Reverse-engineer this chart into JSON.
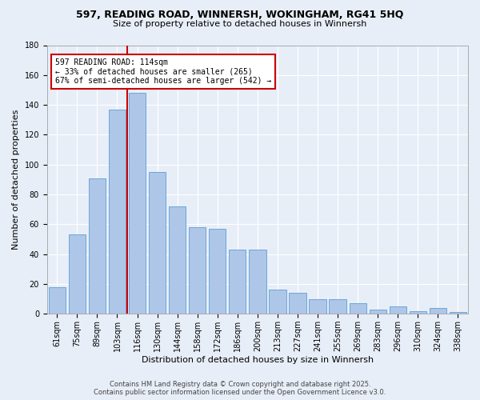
{
  "title1": "597, READING ROAD, WINNERSH, WOKINGHAM, RG41 5HQ",
  "title2": "Size of property relative to detached houses in Winnersh",
  "xlabel": "Distribution of detached houses by size in Winnersh",
  "ylabel": "Number of detached properties",
  "categories": [
    "61sqm",
    "75sqm",
    "89sqm",
    "103sqm",
    "116sqm",
    "130sqm",
    "144sqm",
    "158sqm",
    "172sqm",
    "186sqm",
    "200sqm",
    "213sqm",
    "227sqm",
    "241sqm",
    "255sqm",
    "269sqm",
    "283sqm",
    "296sqm",
    "310sqm",
    "324sqm",
    "338sqm"
  ],
  "values": [
    18,
    53,
    91,
    137,
    148,
    95,
    72,
    58,
    57,
    43,
    43,
    16,
    14,
    10,
    10,
    7,
    3,
    5,
    2,
    4,
    1
  ],
  "bar_color": "#aec6e8",
  "bar_edge_color": "#5a9fd4",
  "vline_pos": 3.5,
  "vline_color": "#cc0000",
  "annotation_title": "597 READING ROAD: 114sqm",
  "annotation_line1": "← 33% of detached houses are smaller (265)",
  "annotation_line2": "67% of semi-detached houses are larger (542) →",
  "annotation_box_color": "#cc0000",
  "ylim": [
    0,
    180
  ],
  "yticks": [
    0,
    20,
    40,
    60,
    80,
    100,
    120,
    140,
    160,
    180
  ],
  "footer1": "Contains HM Land Registry data © Crown copyright and database right 2025.",
  "footer2": "Contains public sector information licensed under the Open Government Licence v3.0.",
  "bg_color": "#e8eef8",
  "grid_color": "#ffffff",
  "title_fontsize": 9,
  "subtitle_fontsize": 8,
  "tick_fontsize": 7,
  "ylabel_fontsize": 8,
  "xlabel_fontsize": 8,
  "footer_fontsize": 6
}
